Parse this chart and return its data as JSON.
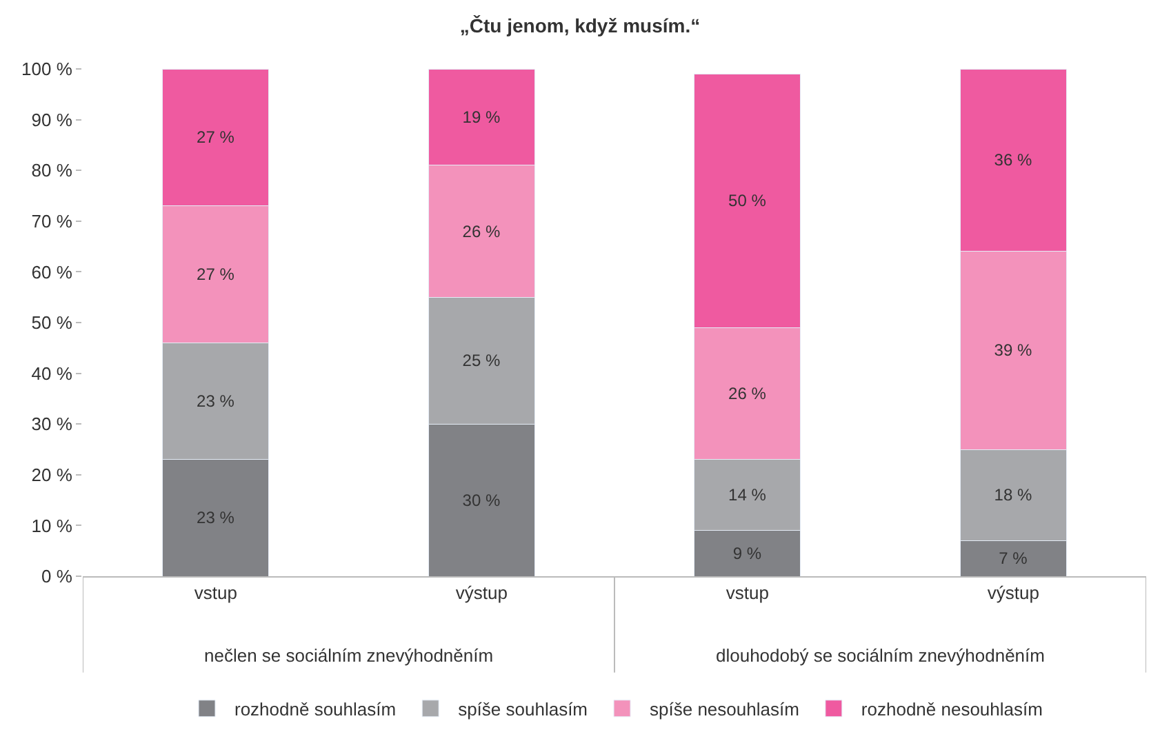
{
  "chart_data": {
    "type": "bar",
    "stacked": true,
    "title": "„Čtu jenom, když musím.“",
    "categories": [
      "vstup",
      "výstup",
      "vstup",
      "výstup"
    ],
    "series": [
      {
        "name": "rozhodně souhlasím",
        "color": "#818286",
        "values": [
          23,
          30,
          9,
          7
        ],
        "value_labels": [
          "23 %",
          "30 %",
          "9 %",
          "7 %"
        ]
      },
      {
        "name": "spíše souhlasím",
        "color": "#a7a8ab",
        "values": [
          23,
          25,
          14,
          18
        ],
        "value_labels": [
          "23 %",
          "25 %",
          "14 %",
          "18 %"
        ]
      },
      {
        "name": "spíše nesouhlasím",
        "color": "#f392bb",
        "values": [
          27,
          26,
          26,
          39
        ],
        "value_labels": [
          "27 %",
          "26 %",
          "26 %",
          "39 %"
        ]
      },
      {
        "name": "rozhodně nesouhlasím",
        "color": "#ef5aa0",
        "values": [
          27,
          19,
          50,
          36
        ],
        "value_labels": [
          "27 %",
          "19 %",
          "50 %",
          "36 %"
        ]
      }
    ],
    "ylim": [
      0,
      100
    ],
    "yticks": [
      {
        "value": 0,
        "label": "0 %"
      },
      {
        "value": 10,
        "label": "10 %"
      },
      {
        "value": 20,
        "label": "20 %"
      },
      {
        "value": 30,
        "label": "30 %"
      },
      {
        "value": 40,
        "label": "40 %"
      },
      {
        "value": 50,
        "label": "50 %"
      },
      {
        "value": 60,
        "label": "60 %"
      },
      {
        "value": 70,
        "label": "70 %"
      },
      {
        "value": 80,
        "label": "80 %"
      },
      {
        "value": 90,
        "label": "90 %"
      },
      {
        "value": 100,
        "label": "100 %"
      }
    ],
    "annotations": [
      "nečlen se sociálním znevýhodněním",
      "dlouhodobý se sociálním znevýhodněním"
    ],
    "legend": "bottom"
  }
}
